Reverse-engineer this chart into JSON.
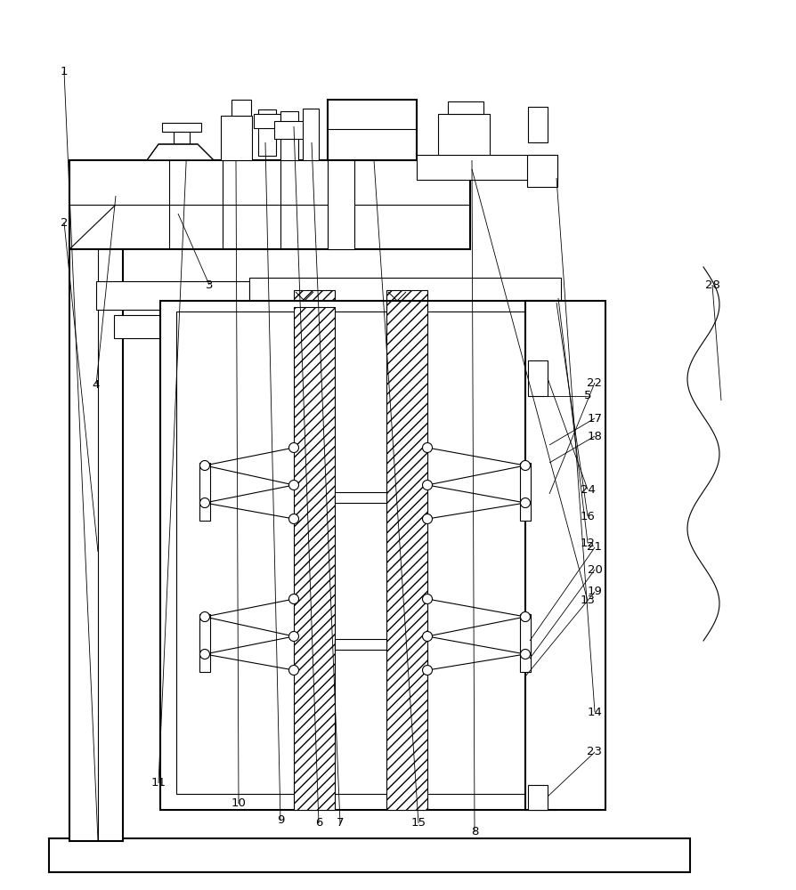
{
  "bg_color": "#ffffff",
  "line_color": "#000000",
  "lw_main": 1.5,
  "lw_thin": 0.8,
  "lw_label": 0.6
}
